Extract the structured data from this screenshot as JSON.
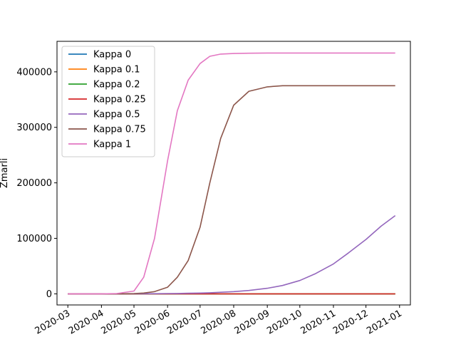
{
  "chart_data": {
    "type": "line",
    "title": "",
    "xlabel": "",
    "ylabel": "Zmarli",
    "xlim": [
      "2020-02-20",
      "2021-01-11"
    ],
    "ylim": [
      -20000,
      455000
    ],
    "x_ticks": [
      "2020-03",
      "2020-04",
      "2020-05",
      "2020-06",
      "2020-07",
      "2020-08",
      "2020-09",
      "2020-10",
      "2020-11",
      "2020-12",
      "2021-01"
    ],
    "y_ticks": [
      0,
      100000,
      200000,
      300000,
      400000
    ],
    "y_tick_labels": [
      "0",
      "100000",
      "200000",
      "300000",
      "400000"
    ],
    "grid": false,
    "legend_position": "upper-left",
    "x": [
      "2020-03-01",
      "2020-03-15",
      "2020-04-01",
      "2020-04-15",
      "2020-05-01",
      "2020-05-10",
      "2020-05-20",
      "2020-06-01",
      "2020-06-10",
      "2020-06-20",
      "2020-07-01",
      "2020-07-10",
      "2020-07-20",
      "2020-08-01",
      "2020-08-15",
      "2020-09-01",
      "2020-09-15",
      "2020-10-01",
      "2020-10-15",
      "2020-11-01",
      "2020-11-15",
      "2020-12-01",
      "2020-12-15",
      "2020-12-28"
    ],
    "series": [
      {
        "name": "Kappa 0",
        "color": "#1f77b4",
        "values": [
          0,
          0,
          0,
          0,
          0,
          0,
          0,
          0,
          0,
          0,
          0,
          0,
          0,
          0,
          0,
          0,
          0,
          0,
          0,
          0,
          0,
          0,
          0,
          0
        ]
      },
      {
        "name": "Kappa 0.1",
        "color": "#ff7f0e",
        "values": [
          0,
          0,
          0,
          0,
          0,
          0,
          0,
          0,
          0,
          0,
          0,
          0,
          0,
          0,
          0,
          0,
          0,
          0,
          0,
          0,
          0,
          0,
          0,
          0
        ]
      },
      {
        "name": "Kappa 0.2",
        "color": "#2ca02c",
        "values": [
          0,
          0,
          0,
          0,
          0,
          0,
          0,
          0,
          0,
          0,
          0,
          0,
          0,
          0,
          0,
          0,
          0,
          0,
          0,
          0,
          0,
          0,
          0,
          0
        ]
      },
      {
        "name": "Kappa 0.25",
        "color": "#d62728",
        "values": [
          0,
          0,
          0,
          0,
          0,
          0,
          0,
          0,
          0,
          0,
          0,
          0,
          0,
          0,
          0,
          0,
          0,
          0,
          0,
          0,
          0,
          0,
          0,
          0
        ]
      },
      {
        "name": "Kappa 0.5",
        "color": "#9467bd",
        "values": [
          0,
          0,
          0,
          0,
          100,
          200,
          300,
          500,
          700,
          1000,
          1500,
          2000,
          2800,
          4000,
          6000,
          10000,
          15000,
          24000,
          36000,
          54000,
          74000,
          98000,
          122000,
          141000
        ]
      },
      {
        "name": "Kappa 0.75",
        "color": "#8c564b",
        "values": [
          0,
          0,
          0,
          0,
          500,
          1500,
          4000,
          12000,
          30000,
          60000,
          120000,
          200000,
          280000,
          340000,
          365000,
          373000,
          375000,
          375000,
          375000,
          375000,
          375000,
          375000,
          375000,
          375000
        ]
      },
      {
        "name": "Kappa 1",
        "color": "#e377c2",
        "values": [
          0,
          0,
          0,
          500,
          5000,
          30000,
          100000,
          240000,
          330000,
          385000,
          415000,
          428000,
          432000,
          433000,
          433500,
          434000,
          434000,
          434000,
          434000,
          434000,
          434000,
          434000,
          434000,
          434000
        ]
      }
    ]
  }
}
